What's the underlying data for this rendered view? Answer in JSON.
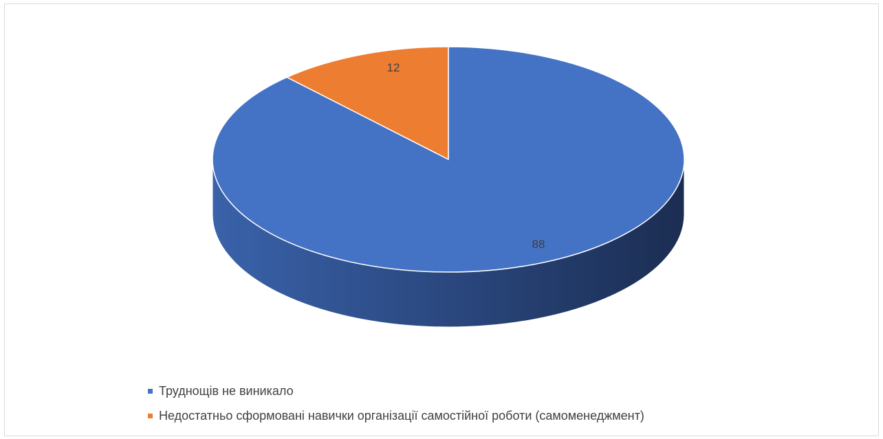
{
  "chart_data": {
    "type": "pie",
    "style": "3d",
    "categories": [
      "Труднощів не виникало",
      "Недостатньо сформовані навички організації самостійної роботи (самоменеджмент)"
    ],
    "values": [
      88,
      12
    ],
    "data_labels": [
      "88",
      "12"
    ],
    "colors": [
      "#4472c4",
      "#ed7d31"
    ],
    "legend_position": "bottom"
  }
}
